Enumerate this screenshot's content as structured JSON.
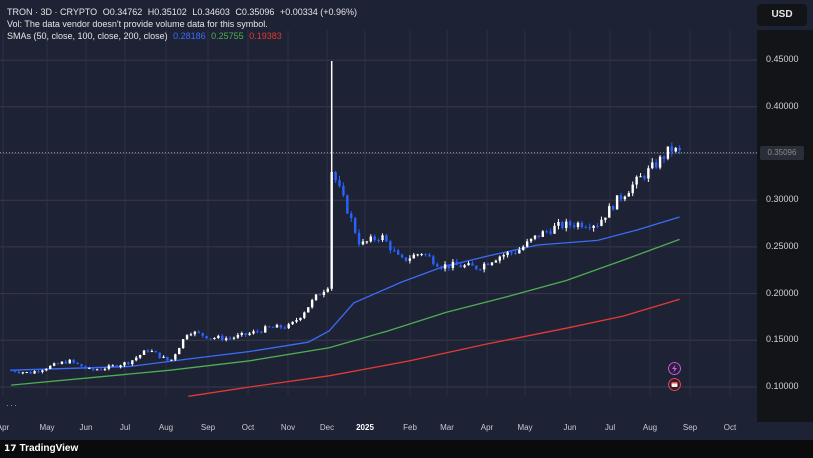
{
  "legend": {
    "symbol_line": "TRON · 3D · CRYPTO",
    "open": "O0.34762",
    "high": "H0.35102",
    "low": "L0.34603",
    "close": "C0.35096",
    "change": "+0.00334 (+0.96%)",
    "vol_note": "Vol: The data vendor doesn't provide volume data for this symbol.",
    "sma_label": "SMAs (50, close, 100, close, 200, close)",
    "sma50_value": "0.28186",
    "sma100_value": "0.25755",
    "sma200_value": "0.19383"
  },
  "currency_button": "USD",
  "last_price_label": "0.35096",
  "more_dots": "···",
  "brand": {
    "logo_mark": "𝟭𝟳",
    "name": "TradingView"
  },
  "colors": {
    "background": "#1e2235",
    "candle_up": "#ffffff",
    "candle_down": "#2962ff",
    "sma50": "#3b6cf6",
    "sma100": "#4caf50",
    "sma200": "#e53935"
  },
  "icons": [
    "lightning-icon",
    "calendar-event-icon"
  ],
  "chart_data": {
    "type": "candlestick",
    "symbol": "TRON",
    "interval": "3D",
    "ylim": [
      0.09,
      0.48
    ],
    "y_ticks": [
      "0.45000",
      "0.40000",
      "0.35000",
      "0.30000",
      "0.25000",
      "0.20000",
      "0.15000",
      "0.10000"
    ],
    "x_ticks": [
      {
        "label": "Apr"
      },
      {
        "label": "May"
      },
      {
        "label": "Jun"
      },
      {
        "label": "Jul"
      },
      {
        "label": "Aug"
      },
      {
        "label": "Sep"
      },
      {
        "label": "Oct"
      },
      {
        "label": "Nov"
      },
      {
        "label": "Dec"
      },
      {
        "label": "2025",
        "bold": true
      },
      {
        "label": "Feb"
      },
      {
        "label": "Mar"
      },
      {
        "label": "Apr"
      },
      {
        "label": "May"
      },
      {
        "label": "Jun"
      },
      {
        "label": "Jul"
      },
      {
        "label": "Aug"
      },
      {
        "label": "Sep"
      },
      {
        "label": "Oct"
      }
    ],
    "close_path": [
      [
        "2024-04-01",
        0.118
      ],
      [
        "2024-04-15",
        0.115
      ],
      [
        "2024-05-01",
        0.122
      ],
      [
        "2024-05-15",
        0.128
      ],
      [
        "2024-06-01",
        0.118
      ],
      [
        "2024-06-15",
        0.121
      ],
      [
        "2024-07-01",
        0.127
      ],
      [
        "2024-07-15",
        0.14
      ],
      [
        "2024-08-01",
        0.127
      ],
      [
        "2024-08-15",
        0.16
      ],
      [
        "2024-09-01",
        0.153
      ],
      [
        "2024-09-15",
        0.152
      ],
      [
        "2024-10-01",
        0.157
      ],
      [
        "2024-10-15",
        0.163
      ],
      [
        "2024-11-01",
        0.165
      ],
      [
        "2024-11-10",
        0.178
      ],
      [
        "2024-11-20",
        0.195
      ],
      [
        "2024-12-01",
        0.21
      ],
      [
        "2024-12-03",
        0.332
      ],
      [
        "2024-12-15",
        0.29
      ],
      [
        "2024-12-25",
        0.252
      ],
      [
        "2025-01-10",
        0.262
      ],
      [
        "2025-01-25",
        0.235
      ],
      [
        "2025-02-10",
        0.244
      ],
      [
        "2025-02-25",
        0.23
      ],
      [
        "2025-03-10",
        0.23
      ],
      [
        "2025-03-25",
        0.228
      ],
      [
        "2025-04-10",
        0.24
      ],
      [
        "2025-04-25",
        0.246
      ],
      [
        "2025-05-10",
        0.262
      ],
      [
        "2025-05-25",
        0.272
      ],
      [
        "2025-06-10",
        0.275
      ],
      [
        "2025-06-25",
        0.275
      ],
      [
        "2025-07-10",
        0.3
      ],
      [
        "2025-07-25",
        0.32
      ],
      [
        "2025-08-10",
        0.34
      ],
      [
        "2025-08-20",
        0.355
      ],
      [
        "2025-08-27",
        0.351
      ]
    ],
    "high_spike": {
      "date": "2024-12-03",
      "value": 0.449
    },
    "sma_series": [
      {
        "name": "SMA 50",
        "values": [
          [
            "2024-04-01",
            0.118
          ],
          [
            "2024-07-01",
            0.122
          ],
          [
            "2024-08-15",
            0.13
          ],
          [
            "2024-10-01",
            0.138
          ],
          [
            "2024-11-15",
            0.148
          ],
          [
            "2024-12-01",
            0.16
          ],
          [
            "2024-12-20",
            0.19
          ],
          [
            "2025-01-25",
            0.212
          ],
          [
            "2025-02-25",
            0.228
          ],
          [
            "2025-04-01",
            0.24
          ],
          [
            "2025-05-10",
            0.252
          ],
          [
            "2025-06-25",
            0.257
          ],
          [
            "2025-07-25",
            0.268
          ],
          [
            "2025-08-27",
            0.282
          ]
        ]
      },
      {
        "name": "SMA 100",
        "values": [
          [
            "2024-04-01",
            0.102
          ],
          [
            "2024-06-01",
            0.11
          ],
          [
            "2024-08-01",
            0.118
          ],
          [
            "2024-10-01",
            0.128
          ],
          [
            "2024-12-01",
            0.142
          ],
          [
            "2025-01-15",
            0.16
          ],
          [
            "2025-03-01",
            0.18
          ],
          [
            "2025-04-15",
            0.196
          ],
          [
            "2025-06-01",
            0.214
          ],
          [
            "2025-07-15",
            0.236
          ],
          [
            "2025-08-27",
            0.258
          ]
        ]
      },
      {
        "name": "SMA 200",
        "values": [
          [
            "2024-08-15",
            0.09
          ],
          [
            "2024-10-01",
            0.1
          ],
          [
            "2024-12-01",
            0.112
          ],
          [
            "2025-02-01",
            0.128
          ],
          [
            "2025-04-01",
            0.146
          ],
          [
            "2025-06-01",
            0.163
          ],
          [
            "2025-07-15",
            0.176
          ],
          [
            "2025-08-27",
            0.194
          ]
        ]
      }
    ],
    "last_close": 0.35096
  }
}
